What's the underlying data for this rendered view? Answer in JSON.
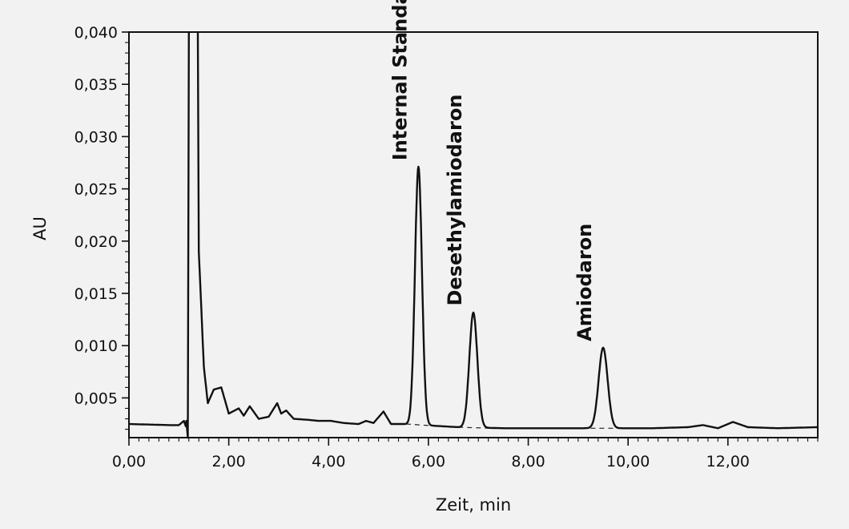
{
  "chart_data": {
    "type": "line",
    "xlabel": "Zeit, min",
    "ylabel": "AU",
    "xlim": [
      0,
      13.8
    ],
    "ylim": [
      0.0012,
      0.04
    ],
    "x_ticks": [
      0,
      2,
      4,
      6,
      8,
      10,
      12
    ],
    "x_tick_labels": [
      "0,00",
      "2,00",
      "4,00",
      "6,00",
      "8,00",
      "10,00",
      "12,00"
    ],
    "y_ticks": [
      0.005,
      0.01,
      0.015,
      0.02,
      0.025,
      0.03,
      0.035,
      0.04
    ],
    "y_tick_labels": [
      "0,005",
      "0,010",
      "0,015",
      "0,020",
      "0,025",
      "0,030",
      "0,035",
      "0,040"
    ],
    "grid": false,
    "baseline": {
      "points": [
        [
          0,
          0.0025
        ],
        [
          0.8,
          0.0024
        ],
        [
          1.0,
          0.0024
        ],
        [
          1.1,
          0.0028
        ],
        [
          1.2,
          0.0015
        ],
        [
          1.22,
          0.045
        ],
        [
          1.35,
          0.045
        ],
        [
          1.4,
          0.019
        ],
        [
          1.5,
          0.008
        ],
        [
          1.58,
          0.0045
        ],
        [
          1.7,
          0.0058
        ],
        [
          1.85,
          0.006
        ],
        [
          2.0,
          0.0035
        ],
        [
          2.2,
          0.004
        ],
        [
          2.3,
          0.0033
        ],
        [
          2.42,
          0.0042
        ],
        [
          2.6,
          0.003
        ],
        [
          2.8,
          0.0032
        ],
        [
          2.97,
          0.0045
        ],
        [
          3.05,
          0.0035
        ],
        [
          3.15,
          0.0038
        ],
        [
          3.3,
          0.003
        ],
        [
          3.6,
          0.0029
        ],
        [
          3.8,
          0.0028
        ],
        [
          4.05,
          0.0028
        ],
        [
          4.3,
          0.0026
        ],
        [
          4.6,
          0.0025
        ],
        [
          4.75,
          0.0028
        ],
        [
          4.9,
          0.0026
        ],
        [
          5.1,
          0.0037
        ],
        [
          5.25,
          0.0025
        ],
        [
          5.5,
          0.0025
        ],
        [
          6.6,
          0.0022
        ],
        [
          7.5,
          0.0021
        ],
        [
          9.0,
          0.0021
        ],
        [
          10.5,
          0.0021
        ],
        [
          11.2,
          0.0022
        ],
        [
          11.5,
          0.0024
        ],
        [
          11.8,
          0.0021
        ],
        [
          12.1,
          0.0027
        ],
        [
          12.4,
          0.0022
        ],
        [
          13.0,
          0.0021
        ],
        [
          13.8,
          0.0022
        ]
      ]
    },
    "peaks": [
      {
        "name": "Internal Standard",
        "x": 5.8,
        "y": 0.0271,
        "base": 0.0024,
        "width": 0.07
      },
      {
        "name": "Desethylamiodaron",
        "x": 6.9,
        "y": 0.0132,
        "base": 0.0022,
        "width": 0.08
      },
      {
        "name": "Amiodaron",
        "x": 9.5,
        "y": 0.0098,
        "base": 0.0021,
        "width": 0.09
      }
    ],
    "peak_baseline_dashed": [
      [
        5.55,
        0.0025,
        6.2,
        0.0023
      ],
      [
        6.6,
        0.0022,
        7.25,
        0.0021
      ],
      [
        9.25,
        0.0021,
        9.85,
        0.0021
      ]
    ]
  }
}
